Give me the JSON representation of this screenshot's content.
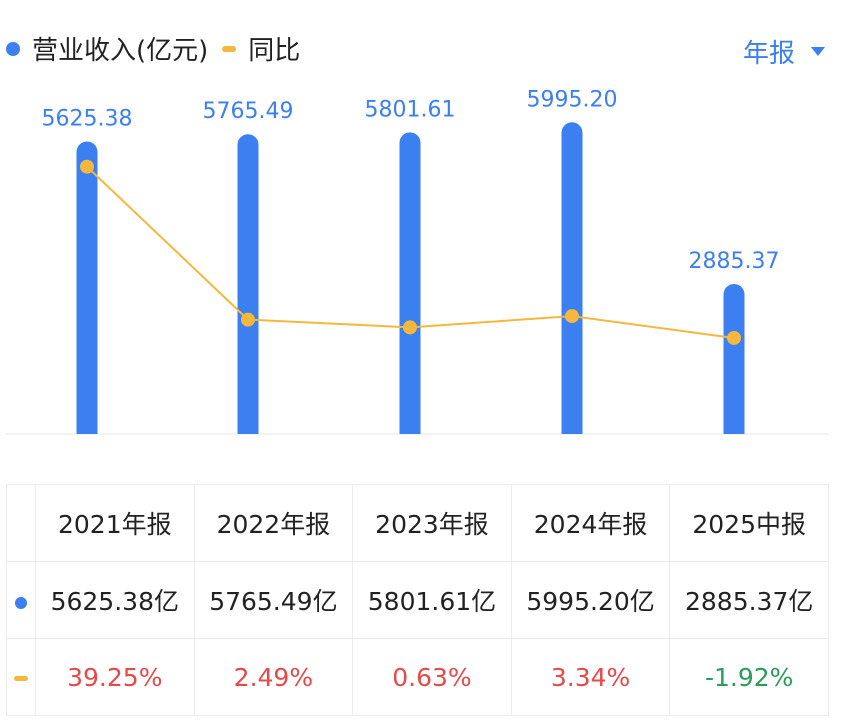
{
  "legend": {
    "revenue_label": "营业收入(亿元)",
    "yoy_label": "同比"
  },
  "period_selector": {
    "label": "年报"
  },
  "colors": {
    "bar": "#3b7ff0",
    "line": "#f5b83d",
    "label_blue": "#3b7ff0",
    "positive": "#e6494a",
    "negative": "#2a9d5c"
  },
  "chart_data": {
    "type": "bar",
    "categories": [
      "2021年报",
      "2022年报",
      "2023年报",
      "2024年报",
      "2025中报"
    ],
    "series": [
      {
        "name": "营业收入(亿元)",
        "type": "bar",
        "values": [
          5625.38,
          5765.49,
          5801.61,
          5995.2,
          2885.37
        ]
      },
      {
        "name": "同比",
        "type": "line",
        "values": [
          39.25,
          2.49,
          0.63,
          3.34,
          -1.92
        ]
      }
    ],
    "data_labels": [
      "5625.38",
      "5765.49",
      "5801.61",
      "5995.20",
      "2885.37"
    ],
    "ylim_bar": [
      0,
      6000
    ],
    "ylim_line": [
      -25,
      50
    ],
    "grid": false,
    "legend_position": "top-left"
  },
  "table": {
    "headers": [
      "2021年报",
      "2022年报",
      "2023年报",
      "2024年报",
      "2025中报"
    ],
    "revenue_row": [
      "5625.38亿",
      "5765.49亿",
      "5801.61亿",
      "5995.20亿",
      "2885.37亿"
    ],
    "yoy_row": [
      "39.25%",
      "2.49%",
      "0.63%",
      "3.34%",
      "-1.92%"
    ]
  }
}
